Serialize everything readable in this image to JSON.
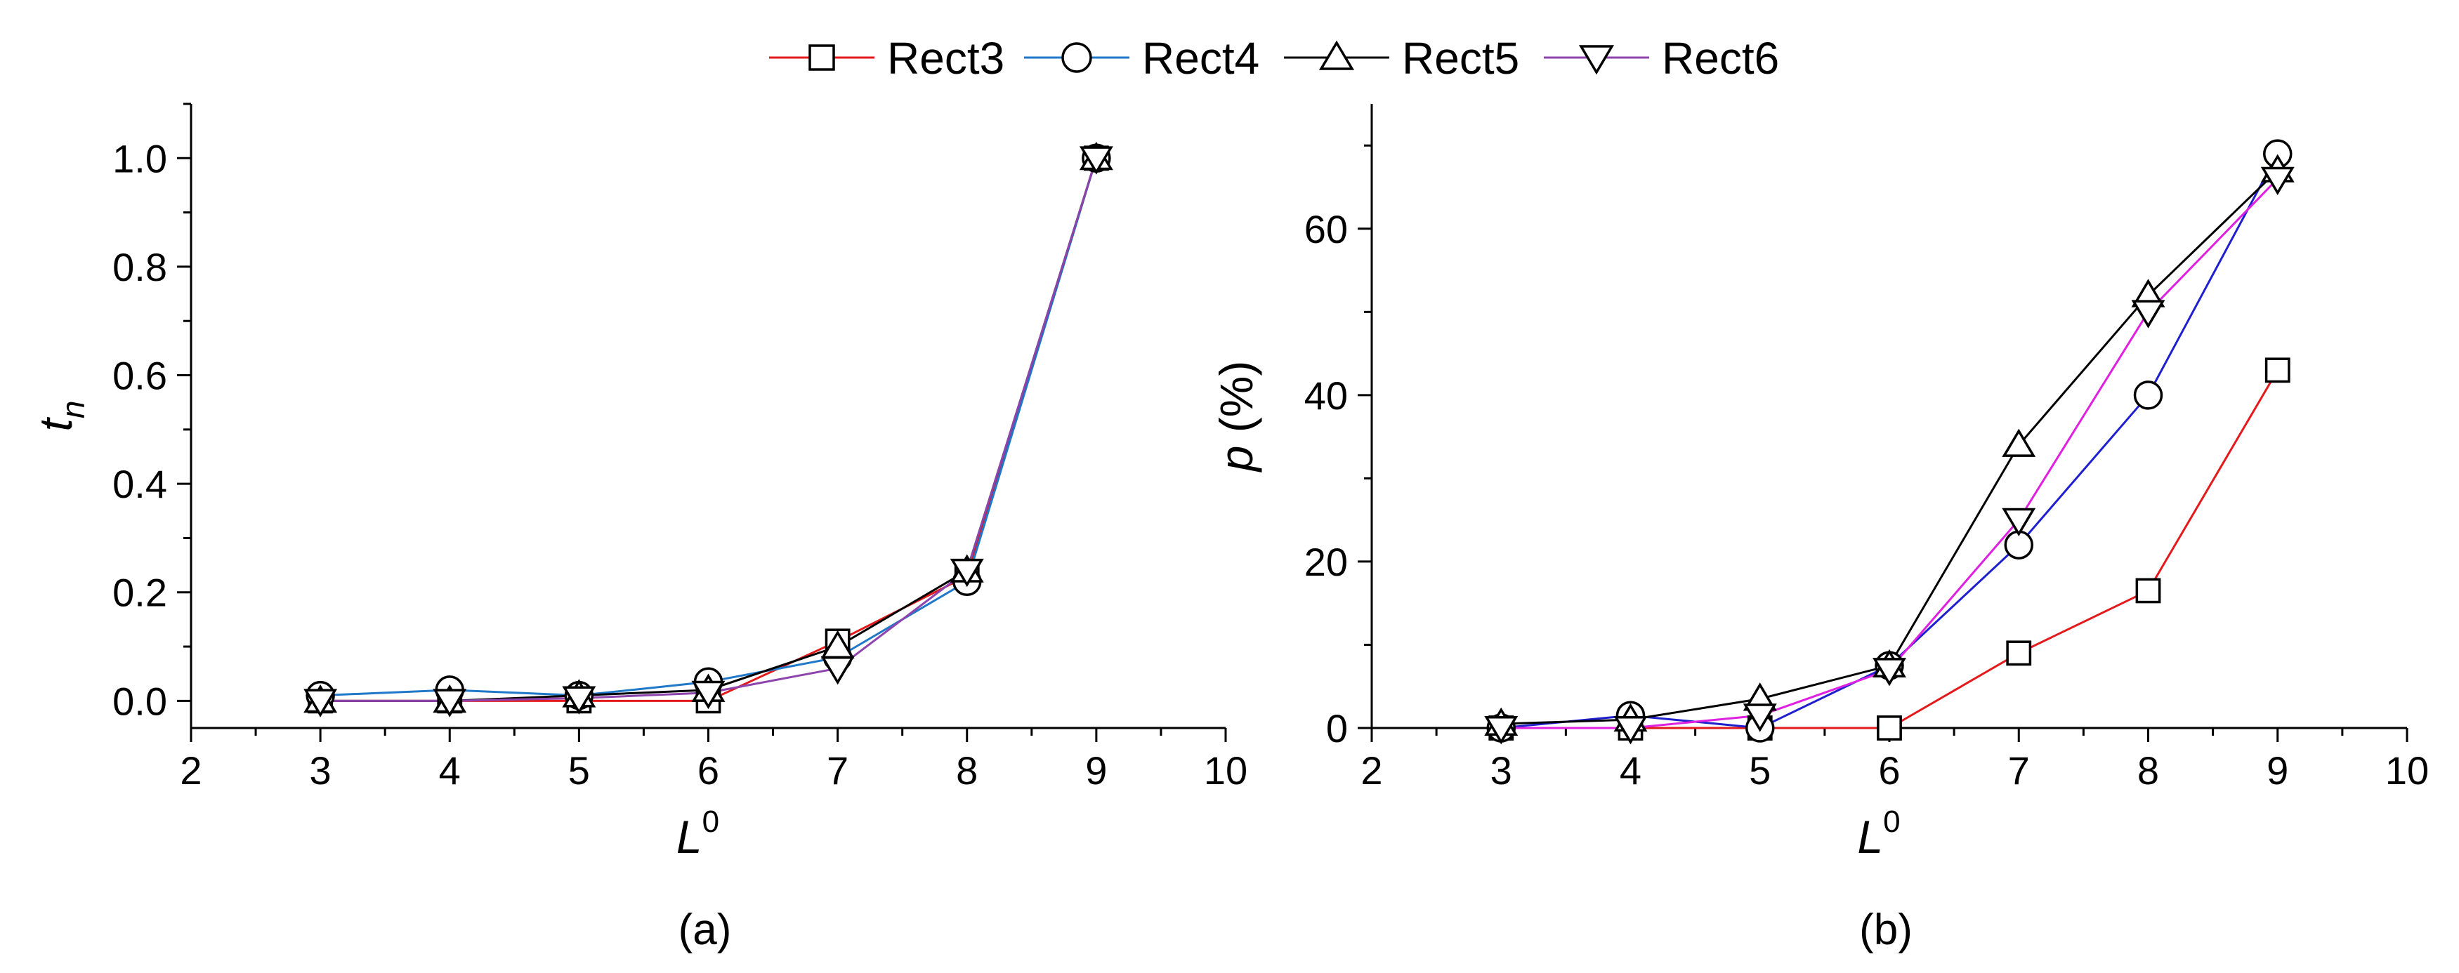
{
  "legend": [
    {
      "name": "Rect3",
      "marker": "square",
      "color": "#e31a1c"
    },
    {
      "name": "Rect4",
      "marker": "circle",
      "color": "#1f78c8"
    },
    {
      "name": "Rect5",
      "marker": "triangle-up",
      "color": "#000000"
    },
    {
      "name": "Rect6",
      "marker": "triangle-down",
      "color": "#8e44ad"
    }
  ],
  "chart_data": [
    {
      "type": "line",
      "panel_label": "(a)",
      "xlabel": "L",
      "xlabel_sup": "0",
      "ylabel": "t",
      "ylabel_sub": "n",
      "xlim": [
        2,
        10
      ],
      "ylim": [
        -0.05,
        1.1
      ],
      "xticks": [
        "2",
        "3",
        "4",
        "5",
        "6",
        "7",
        "8",
        "9",
        "10"
      ],
      "yticks": [
        "0.0",
        "0.2",
        "0.4",
        "0.6",
        "0.8",
        "1.0"
      ],
      "x": [
        3,
        4,
        5,
        6,
        7,
        8,
        9
      ],
      "series": [
        {
          "name": "Rect3",
          "color": "#e31a1c",
          "marker": "square",
          "values": [
            0.0,
            0.0,
            0.0,
            0.0,
            0.11,
            0.23,
            1.0
          ]
        },
        {
          "name": "Rect4",
          "color": "#1f78c8",
          "marker": "circle",
          "values": [
            0.01,
            0.02,
            0.01,
            0.035,
            0.08,
            0.22,
            1.0
          ]
        },
        {
          "name": "Rect5",
          "color": "#000000",
          "marker": "triangle-up",
          "values": [
            0.0,
            0.0,
            0.01,
            0.02,
            0.1,
            0.24,
            1.0
          ]
        },
        {
          "name": "Rect6",
          "color": "#8e44ad",
          "marker": "triangle-down",
          "values": [
            0.0,
            0.0,
            0.005,
            0.015,
            0.06,
            0.24,
            1.0
          ]
        }
      ]
    },
    {
      "type": "line",
      "panel_label": "(b)",
      "xlabel": "L",
      "xlabel_sup": "0",
      "ylabel": "p",
      "ylabel_suffix": " (%)",
      "xlim": [
        2,
        10
      ],
      "ylim": [
        0,
        75
      ],
      "xticks": [
        "2",
        "3",
        "4",
        "5",
        "6",
        "7",
        "8",
        "9",
        "10"
      ],
      "yticks": [
        "0",
        "20",
        "40",
        "60"
      ],
      "x": [
        3,
        4,
        5,
        6,
        7,
        8,
        9
      ],
      "series": [
        {
          "name": "Rect3",
          "color": "#e31a1c",
          "marker": "square",
          "values": [
            0,
            0,
            0,
            0,
            9,
            16.5,
            43
          ]
        },
        {
          "name": "Rect4",
          "color": "#1f1fd0",
          "marker": "circle",
          "values": [
            0,
            1.5,
            0,
            7.5,
            22,
            40,
            69
          ]
        },
        {
          "name": "Rect5",
          "color": "#000000",
          "marker": "triangle-up",
          "values": [
            0.5,
            1.0,
            3.5,
            7.5,
            34,
            52,
            67
          ]
        },
        {
          "name": "Rect6",
          "color": "#e020e0",
          "marker": "triangle-down",
          "values": [
            0,
            0,
            1.5,
            7.0,
            25,
            50,
            66
          ]
        }
      ]
    }
  ]
}
